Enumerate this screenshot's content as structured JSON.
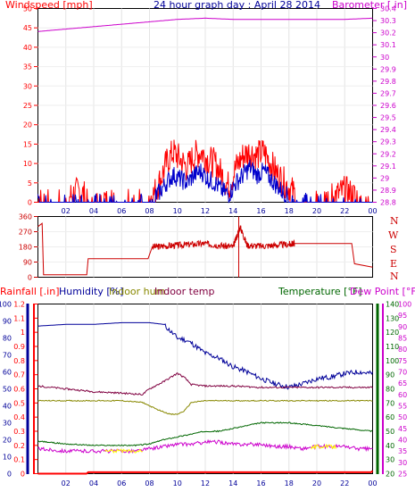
{
  "header": {
    "left_label": "Windspeed [mph]",
    "center_label": "24 hour graph day : April 28 2014",
    "right_label": "Barometer [.in]"
  },
  "direction_letters": [
    "N",
    "W",
    "S",
    "E",
    "N"
  ],
  "bottom_header": {
    "rain_label": "Rainfall [.in]",
    "humidity_label": "Humidity [%]",
    "indoor_hum_label": "Indoor hum",
    "indoor_temp_label": "Indoor temp",
    "temperature_label": "Temperature [°F]",
    "dewpoint_label": "Dew Point [°F]"
  },
  "colors": {
    "wind": "#ff0000",
    "gust": "#0000cc",
    "barometer": "#cc00cc",
    "direction": "#cc0000",
    "rain": "#ff0000",
    "humidity": "#000099",
    "indoor_hum": "#888800",
    "indoor_temp": "#800040",
    "temperature": "#006600",
    "dewpoint": "#cc00cc",
    "yellow": "#ffff00",
    "axis_left": "#000099",
    "axis_right": "#006600"
  },
  "chart_data": [
    {
      "type": "line",
      "name": "windspeed-barometer",
      "x_ticks": [
        "02",
        "04",
        "06",
        "08",
        "10",
        "12",
        "14",
        "16",
        "18",
        "20",
        "22",
        "00"
      ],
      "ylim_left": [
        0,
        50
      ],
      "y_ticks_left": [
        "0",
        "5",
        "10",
        "15",
        "20",
        "25",
        "30",
        "35",
        "40",
        "45",
        "50"
      ],
      "ylim_right": [
        28.8,
        30.4
      ],
      "y_ticks_right": [
        "28.8",
        "28.9",
        "29",
        "29.1",
        "29.2",
        "29.3",
        "29.4",
        "29.5",
        "29.6",
        "29.7",
        "29.8",
        "29.9",
        "30",
        "30.1",
        "30.2",
        "30.3",
        "30.4"
      ],
      "series": [
        {
          "key": "wind",
          "hours": [
            0,
            2,
            3,
            3.5,
            4,
            5,
            6,
            7,
            7.8,
            8.3,
            8.8,
            9.2,
            9.7,
            10.2,
            10.7,
            11.2,
            11.7,
            12.2,
            12.7,
            13.2,
            13.7,
            14.2,
            14.7,
            15.2,
            15.7,
            16.2,
            16.7,
            17.2,
            17.7,
            18.2,
            18.6,
            19.2,
            20.5,
            21.5,
            22,
            23,
            24
          ],
          "values": [
            1,
            1,
            3,
            1,
            1,
            1,
            1,
            1,
            1,
            2,
            6,
            10,
            13,
            11,
            9,
            12,
            13,
            11,
            10,
            7,
            4,
            9,
            12,
            13,
            12,
            13,
            10,
            7,
            5,
            3,
            1,
            1,
            1,
            2,
            3,
            1,
            1
          ]
        },
        {
          "key": "gust",
          "hours": [
            0,
            7.8,
            8.3,
            8.8,
            9.2,
            9.7,
            10.2,
            10.7,
            11.2,
            11.7,
            12.2,
            12.7,
            13.2,
            13.7,
            14.2,
            14.7,
            15.2,
            15.7,
            16.2,
            16.7,
            17.2,
            17.7,
            18.2,
            18.6,
            24
          ],
          "values": [
            0,
            0,
            1,
            3,
            5,
            7,
            6,
            5,
            7,
            8,
            6,
            5,
            3,
            2,
            5,
            7,
            9,
            7,
            8,
            6,
            4,
            2,
            1,
            0,
            0
          ]
        },
        {
          "key": "barometer",
          "hours": [
            0,
            2,
            4,
            6,
            8,
            10,
            12,
            14,
            16,
            18,
            20,
            22,
            24
          ],
          "values": [
            30.21,
            30.23,
            30.25,
            30.27,
            30.29,
            30.31,
            30.32,
            30.31,
            30.31,
            30.31,
            30.31,
            30.31,
            30.32
          ]
        }
      ]
    },
    {
      "type": "line",
      "name": "wind-direction",
      "ylim": [
        0,
        360
      ],
      "y_ticks": [
        "0",
        "90",
        "180",
        "270",
        "360"
      ],
      "series": [
        {
          "key": "direction",
          "hours": [
            0,
            0.3,
            0.4,
            3.5,
            3.6,
            7.9,
            8.2,
            9,
            10,
            11,
            12,
            13,
            14,
            14.5,
            15,
            16,
            17,
            18,
            18.4,
            22.5,
            22.7,
            24
          ],
          "values": [
            300,
            320,
            15,
            15,
            110,
            110,
            180,
            185,
            190,
            195,
            200,
            190,
            180,
            300,
            190,
            185,
            190,
            195,
            200,
            200,
            80,
            60
          ]
        }
      ]
    },
    {
      "type": "line",
      "name": "rain-humidity-temperature",
      "ylim_rain": [
        0,
        1.2
      ],
      "y_ticks_rain": [
        "0",
        "0.1",
        "0.2",
        "0.3",
        "0.4",
        "0.5",
        "0.6",
        "0.7",
        "0.8",
        "0.9",
        "1",
        "1.1",
        "1.2"
      ],
      "ylim_humidity": [
        0,
        100
      ],
      "y_ticks_humidity": [
        "0",
        "10",
        "20",
        "30",
        "40",
        "50",
        "60",
        "70",
        "80",
        "90",
        "100"
      ],
      "ylim_temp": [
        20,
        140
      ],
      "y_ticks_temp": [
        "20",
        "30",
        "40",
        "50",
        "60",
        "70",
        "80",
        "90",
        "100",
        "110",
        "120",
        "130",
        "140"
      ],
      "ylim_dew": [
        25,
        100
      ],
      "y_ticks_dew": [
        "25",
        "30",
        "35",
        "40",
        "45",
        "50",
        "55",
        "60",
        "65",
        "70",
        "75",
        "80",
        "85",
        "90",
        "95",
        "100"
      ],
      "series": [
        {
          "key": "humidity",
          "axis": "humidity",
          "hours": [
            0,
            2,
            4,
            6,
            8,
            9,
            9.5,
            10,
            10.5,
            11,
            12,
            13,
            14,
            15,
            16,
            17,
            18,
            19,
            20,
            21,
            22,
            23,
            24
          ],
          "values": [
            87,
            88,
            88,
            89,
            89,
            88,
            84,
            80,
            79,
            77,
            71,
            68,
            63,
            60,
            56,
            53,
            51,
            53,
            56,
            57,
            59,
            60,
            59
          ]
        },
        {
          "key": "indoor_temp",
          "axis": "temp",
          "hours": [
            0,
            2,
            4,
            6,
            7.5,
            8,
            9,
            10,
            10.5,
            11,
            12,
            14,
            16,
            18,
            20,
            22,
            24
          ],
          "values": [
            82,
            80,
            78,
            77,
            76,
            80,
            85,
            91,
            88,
            83,
            82,
            82,
            81,
            81,
            81,
            81,
            81
          ],
          "wiggle": 0.6
        },
        {
          "key": "indoor_hum",
          "axis": "humidity",
          "hours": [
            0,
            2,
            4,
            6,
            7.5,
            8.5,
            9.5,
            10,
            10.5,
            11,
            12,
            16,
            20,
            24
          ],
          "values": [
            43,
            43,
            43,
            43,
            42,
            38,
            35,
            35,
            37,
            42,
            43,
            43,
            43,
            43
          ],
          "wiggle": 0.3
        },
        {
          "key": "temperature",
          "axis": "temp",
          "hours": [
            0,
            2,
            4,
            6,
            7,
            8,
            9,
            10,
            11,
            12,
            13,
            14,
            15,
            16,
            17,
            18,
            19,
            20,
            21,
            22,
            23,
            24
          ],
          "values": [
            43,
            41,
            40,
            40,
            40,
            41,
            44,
            46,
            48,
            50,
            50,
            52,
            54,
            56,
            56,
            56,
            55,
            54,
            53,
            52,
            51,
            50
          ],
          "wiggle": 0.4
        },
        {
          "key": "dewpoint",
          "axis": "dew",
          "hours": [
            0,
            2,
            4,
            6,
            7,
            8,
            9,
            10,
            11,
            12,
            13,
            14,
            15,
            16,
            17,
            18,
            19,
            20,
            21,
            22,
            23,
            24
          ],
          "values": [
            36,
            35,
            35,
            35,
            35,
            36,
            37,
            38,
            38,
            39,
            39,
            38,
            38,
            38,
            37,
            37,
            36,
            37,
            37,
            37,
            36,
            36
          ],
          "wiggle": 0.8
        },
        {
          "key": "rain",
          "axis": "rain",
          "hours": [
            0,
            3.5,
            3.6,
            23.9,
            24
          ],
          "values": [
            0,
            0,
            0.01,
            0.01,
            0.02
          ]
        }
      ]
    }
  ]
}
